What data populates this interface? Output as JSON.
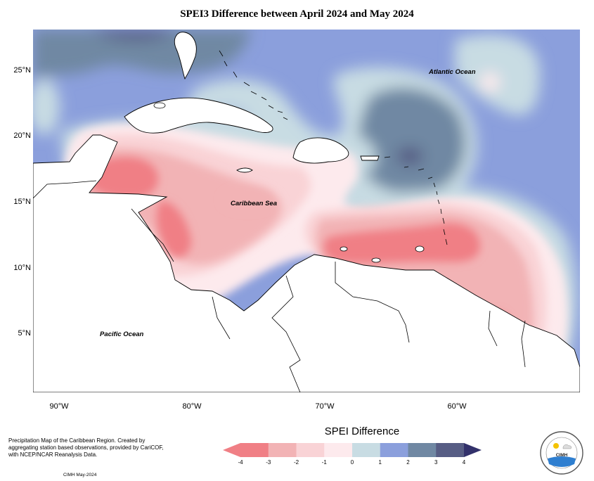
{
  "title": "SPEI3 Difference between April 2024 and May 2024",
  "map": {
    "lon_range": [
      -92,
      -51
    ],
    "lat_range": [
      0.7,
      28.2
    ],
    "lat_ticks": [
      "25°N",
      "20°N",
      "15°N",
      "10°N",
      "5°N"
    ],
    "lon_ticks": [
      "90°W",
      "80°W",
      "70°W",
      "60°W"
    ],
    "labels": {
      "atlantic": "Atlantic Ocean",
      "caribbean": "Caribbean Sea",
      "pacific": "Pacific Ocean"
    },
    "colors": {
      "neg4": "#f07f85",
      "neg3": "#f2b3b5",
      "neg2": "#f9d3d6",
      "neg1": "#fdeaed",
      "zero": "#c8dce3",
      "pos1": "#8b9fdc",
      "pos2": "#7088a3",
      "pos3": "#575d84",
      "pos4": "#32316b",
      "land": "#ffffff"
    }
  },
  "legend": {
    "title": "SPEI Difference",
    "ticks": [
      "-4",
      "-3",
      "-2",
      "-1",
      "0",
      "1",
      "2",
      "3",
      "4"
    ]
  },
  "footnote": "Precipitation Map of the Caribbean Region. Created by aggregating station based observations, provided by CariCOF, with NCEP/NCAR Reanalysis Data.",
  "credit": "CIMH May-2024",
  "logo": {
    "text": "CIMH",
    "ring_text": "CARIBBEAN INSTITUTE FOR METEOROLOGY AND HYDROLOGY"
  }
}
